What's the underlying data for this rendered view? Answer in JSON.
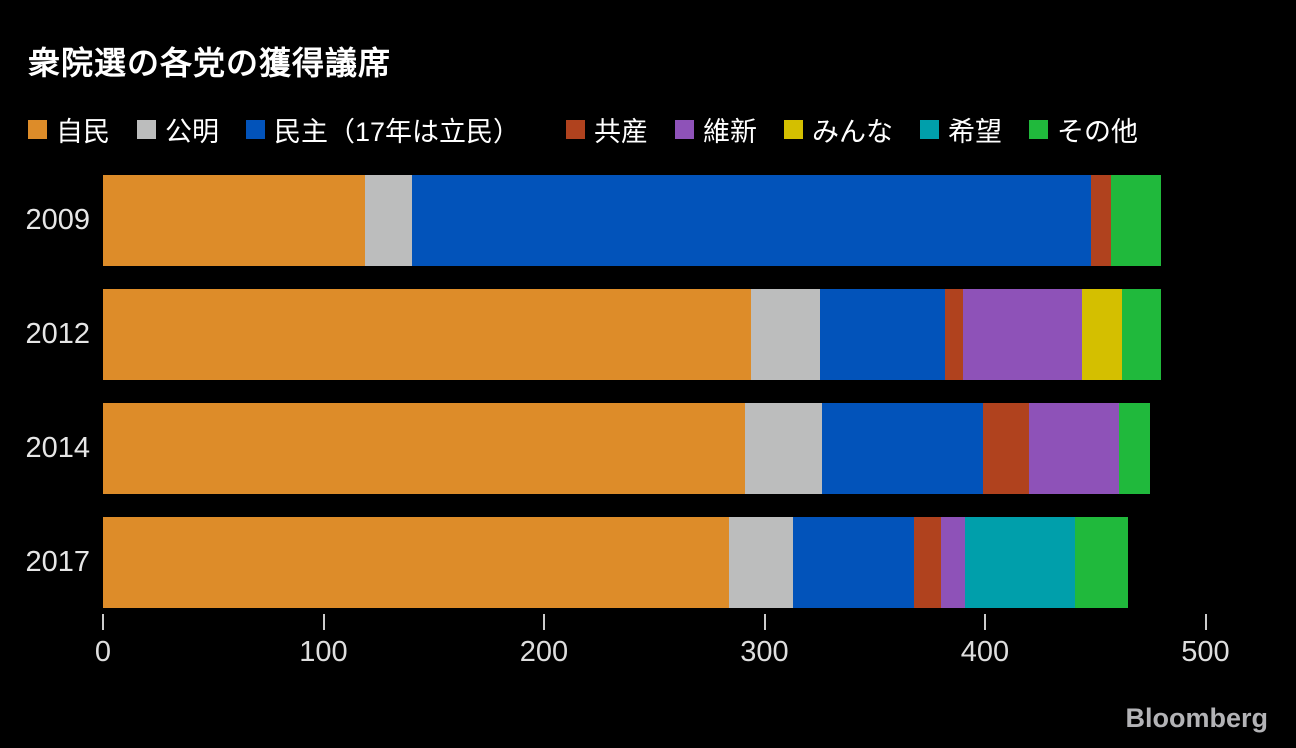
{
  "title": "衆院選の各党の獲得議席",
  "logo_text": "Bloomberg",
  "colors": {
    "background": "#000000",
    "title_text": "#ffffff",
    "legend_text": "#ffffff",
    "year_label_text": "#e6e6e6",
    "axis_label_text": "#dedede",
    "tick_mark": "#cccccc",
    "logo_text": "#b3b3b6"
  },
  "chart_data": {
    "type": "bar",
    "orientation": "horizontal",
    "stacked": true,
    "title": "衆院選の各党の獲得議席",
    "categories": [
      "2009",
      "2012",
      "2014",
      "2017"
    ],
    "series": [
      {
        "name": "自民",
        "color": "#DD8C29",
        "values": [
          119,
          294,
          291,
          284
        ]
      },
      {
        "name": "公明",
        "color": "#BCBDBD",
        "values": [
          21,
          31,
          35,
          29
        ]
      },
      {
        "name": "民主（17年は立民）",
        "color": "#0253BA",
        "values": [
          308,
          57,
          73,
          55
        ]
      },
      {
        "name": "共産",
        "color": "#B0421E",
        "values": [
          9,
          8,
          21,
          12
        ]
      },
      {
        "name": "維新",
        "color": "#8E52B8",
        "values": [
          0,
          54,
          41,
          11
        ]
      },
      {
        "name": "みんな",
        "color": "#D4BF00",
        "values": [
          0,
          18,
          0,
          0
        ]
      },
      {
        "name": "希望",
        "color": "#009FAB",
        "values": [
          0,
          0,
          0,
          50
        ]
      },
      {
        "name": "その他",
        "color": "#20B93C",
        "values": [
          23,
          18,
          14,
          24
        ]
      }
    ],
    "totals": [
      480,
      480,
      475,
      465
    ],
    "xlim": [
      0,
      500
    ],
    "x_ticks": [
      0,
      100,
      200,
      300,
      400,
      500
    ],
    "xlabel": "",
    "ylabel": "",
    "legend_position": "top",
    "grid": false
  }
}
